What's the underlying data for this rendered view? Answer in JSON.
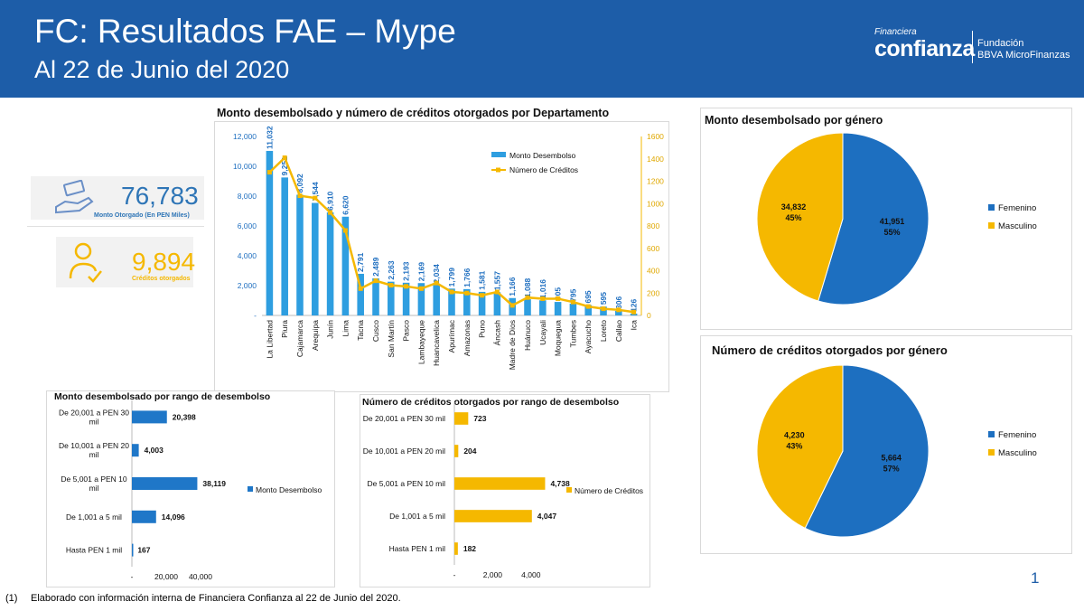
{
  "header": {
    "title": "FC: Resultados FAE – Mype",
    "subtitle": "Al 22 de Junio del 2020",
    "logo_financiera": "Financiera",
    "logo_confianza": "confianza",
    "logo_fundacion": "Fundación",
    "logo_bbva": "BBVA MicroFinanzas"
  },
  "kpis": {
    "monto": {
      "value": "76,783",
      "label": "Monto Otorgado (En PEN Miles)",
      "color": "#2e75b6",
      "icon": "money-hand-icon"
    },
    "creditos": {
      "value": "9,894",
      "label": "Créditos otorgados",
      "color": "#f5b800",
      "icon": "person-check-icon"
    }
  },
  "colors": {
    "blue": "#2e9ee0",
    "yellow": "#f5b800",
    "pie_blue": "#1d6fc0",
    "bar_blue": "#1f77c8",
    "header": "#1d5da8"
  },
  "chart_data": [
    {
      "type": "bar",
      "title": "Monto desembolsado y número de créditos otorgados por Departamento",
      "categories": [
        "La Libertad",
        "Piura",
        "Cajamarca",
        "Arequipa",
        "Junín",
        "Lima",
        "Tacna",
        "Cusco",
        "San Martín",
        "Pasco",
        "Lambayeque",
        "Huancavelica",
        "Apurímac",
        "Amazonas",
        "Puno",
        "Áncash",
        "Madre de Dios",
        "Huánuco",
        "Ucayali",
        "Moquegua",
        "Tumbes",
        "Ayacucho",
        "Loreto",
        "Callao",
        "Ica"
      ],
      "series": [
        {
          "name": "Monto Desembolso",
          "type": "bar",
          "axis": "left",
          "values": [
            11032,
            9251,
            8092,
            7544,
            6910,
            6620,
            2791,
            2489,
            2263,
            2193,
            2169,
            2034,
            1799,
            1766,
            1581,
            1557,
            1166,
            1088,
            1016,
            905,
            795,
            695,
            595,
            306,
            126
          ],
          "labels": [
            "11,032",
            "9,251",
            "8,092",
            "7,544",
            "6,910",
            "6,620",
            "2,791",
            "2,489",
            "2,263",
            "2,193",
            "2,169",
            "2,034",
            "1,799",
            "1,766",
            "1,581",
            "1,557",
            "1,166",
            "1,088",
            "1,016",
            "905",
            "795",
            "695",
            "595",
            "306",
            "126"
          ]
        },
        {
          "name": "Número de Créditos",
          "type": "line",
          "axis": "right",
          "values": [
            1280,
            1410,
            1070,
            1050,
            920,
            760,
            240,
            310,
            270,
            260,
            240,
            290,
            210,
            200,
            180,
            210,
            90,
            160,
            150,
            150,
            120,
            80,
            60,
            50,
            30
          ]
        }
      ],
      "left_ticks": [
        "12,000",
        "10,000",
        "8,000",
        "6,000",
        "4,000",
        "2,000",
        "-"
      ],
      "right_ticks": [
        "1600",
        "1400",
        "1200",
        "1000",
        "800",
        "600",
        "400",
        "200",
        "0"
      ],
      "ylim_left": [
        0,
        12000
      ],
      "ylim_right": [
        0,
        1600
      ],
      "legend": "top-right"
    },
    {
      "type": "pie",
      "title": "Monto desembolsado por género",
      "slices": [
        {
          "name": "Femenino",
          "value": 41951,
          "label": "41,951",
          "pct": "55%"
        },
        {
          "name": "Masculino",
          "value": 34832,
          "label": "34,832",
          "pct": "45%"
        }
      ],
      "legend": "right"
    },
    {
      "type": "pie",
      "title": "Número de créditos otorgados por género",
      "slices": [
        {
          "name": "Femenino",
          "value": 5664,
          "label": "5,664",
          "pct": "57%"
        },
        {
          "name": "Masculino",
          "value": 4230,
          "label": "4,230",
          "pct": "43%"
        }
      ],
      "legend": "right"
    },
    {
      "type": "bar",
      "orientation": "horizontal",
      "title": "Monto desembolsado por rango de desembolso",
      "categories": [
        "De 20,001 a PEN 30 mil",
        "De 10,001 a PEN 20 mil",
        "De 5,001 a PEN 10 mil",
        "De 1,001 a 5 mil",
        "Hasta PEN 1 mil"
      ],
      "series": [
        {
          "name": "Monto Desembolso",
          "values": [
            20398,
            4003,
            38119,
            14096,
            167
          ],
          "labels": [
            "20,398",
            "4,003",
            "38,119",
            "14,096",
            "167"
          ]
        }
      ],
      "ticks": [
        "-",
        "20,000",
        "40,000"
      ],
      "xlim": [
        0,
        40000
      ],
      "legend": "right"
    },
    {
      "type": "bar",
      "orientation": "horizontal",
      "title": "Número de créditos otorgados por rango de desembolso",
      "categories": [
        "De 20,001 a PEN 30 mil",
        "De 10,001 a PEN 20 mil",
        "De 5,001 a PEN 10 mil",
        "De 1,001 a 5 mil",
        "Hasta PEN 1 mil"
      ],
      "series": [
        {
          "name": "Número de Créditos",
          "values": [
            723,
            204,
            4738,
            4047,
            182
          ],
          "labels": [
            "723",
            "204",
            "4,738",
            "4,047",
            "182"
          ]
        }
      ],
      "ticks": [
        "-",
        "2,000",
        "4,000"
      ],
      "xlim": [
        0,
        5000
      ],
      "legend": "right"
    }
  ],
  "footnote": {
    "num": "(1)",
    "text": "Elaborado con información interna de Financiera Confianza al 22 de Junio del 2020."
  },
  "page_number": "1"
}
